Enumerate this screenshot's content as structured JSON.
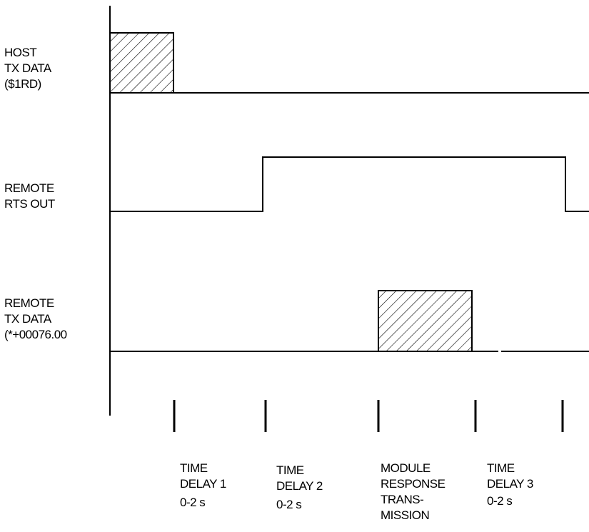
{
  "signals": [
    {
      "id": "host-tx",
      "lines": [
        "HOST",
        "TX DATA",
        "($1RD)"
      ]
    },
    {
      "id": "remote-rts",
      "lines": [
        "REMOTE",
        "RTS OUT"
      ]
    },
    {
      "id": "remote-tx",
      "lines": [
        "REMOTE",
        "TX DATA",
        "(*+00076.00"
      ]
    }
  ],
  "intervals": [
    {
      "id": "delay1",
      "lines": [
        "TIME",
        "DELAY 1",
        "0-2 s"
      ]
    },
    {
      "id": "delay2",
      "lines": [
        "TIME",
        "DELAY 2",
        "0-2 s"
      ]
    },
    {
      "id": "response",
      "lines": [
        "MODULE",
        "RESPONSE",
        "TRANS-",
        "MISSION"
      ]
    },
    {
      "id": "delay3",
      "lines": [
        "TIME",
        "DELAY 3",
        "0-2 s"
      ]
    }
  ]
}
